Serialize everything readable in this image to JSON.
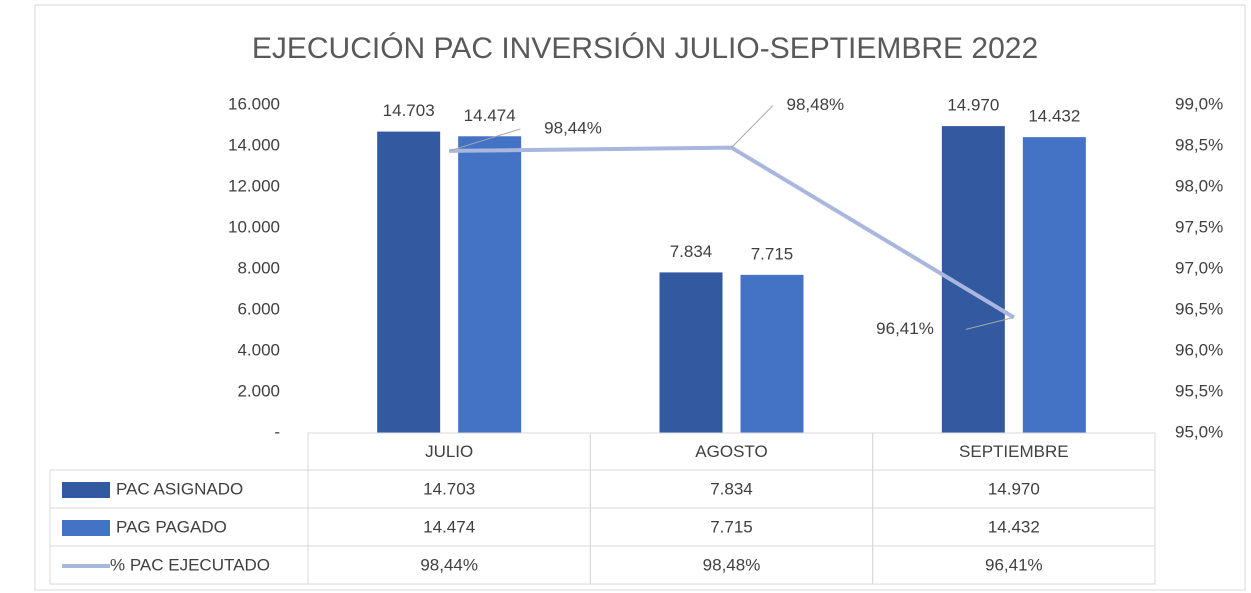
{
  "chart_data": {
    "type": "bar",
    "title": "EJECUCIÓN PAC INVERSIÓN JULIO-SEPTIEMBRE  2022",
    "categories": [
      "JULIO",
      "AGOSTO",
      "SEPTIEMBRE"
    ],
    "series": [
      {
        "name": "PAC ASIGNADO",
        "color": "#335aa1",
        "values": [
          14703,
          7834,
          14970
        ],
        "value_labels": [
          "14.703",
          "7.834",
          "14.970"
        ]
      },
      {
        "name": "PAG PAGADO",
        "color": "#4472c4",
        "values": [
          14474,
          7715,
          14432
        ],
        "value_labels": [
          "14.474",
          "7.715",
          "14.432"
        ]
      },
      {
        "name": "% PAC EJECUTADO",
        "type": "line",
        "axis": "y2",
        "color": "#a9b7de",
        "values": [
          98.44,
          98.48,
          96.41
        ],
        "value_labels": [
          "98,44%",
          "98,48%",
          "96,41%"
        ]
      }
    ],
    "ylim": [
      0,
      16000
    ],
    "yticks": [
      {
        "value": 0,
        "label": "-"
      },
      {
        "value": 2000,
        "label": "2.000"
      },
      {
        "value": 4000,
        "label": "4.000"
      },
      {
        "value": 6000,
        "label": "6.000"
      },
      {
        "value": 8000,
        "label": "8.000"
      },
      {
        "value": 10000,
        "label": "10.000"
      },
      {
        "value": 12000,
        "label": "12.000"
      },
      {
        "value": 14000,
        "label": "14.000"
      },
      {
        "value": 16000,
        "label": "16.000"
      }
    ],
    "y2lim": [
      95,
      99
    ],
    "y2ticks": [
      {
        "value": 95,
        "label": "95,0%"
      },
      {
        "value": 95.5,
        "label": "95,5%"
      },
      {
        "value": 96,
        "label": "96,0%"
      },
      {
        "value": 96.5,
        "label": "96,5%"
      },
      {
        "value": 97,
        "label": "97,0%"
      },
      {
        "value": 97.5,
        "label": "97,5%"
      },
      {
        "value": 98,
        "label": "98,0%"
      },
      {
        "value": 98.5,
        "label": "98,5%"
      },
      {
        "value": 99,
        "label": "99,0%"
      }
    ],
    "grid": false,
    "data_table": true
  }
}
